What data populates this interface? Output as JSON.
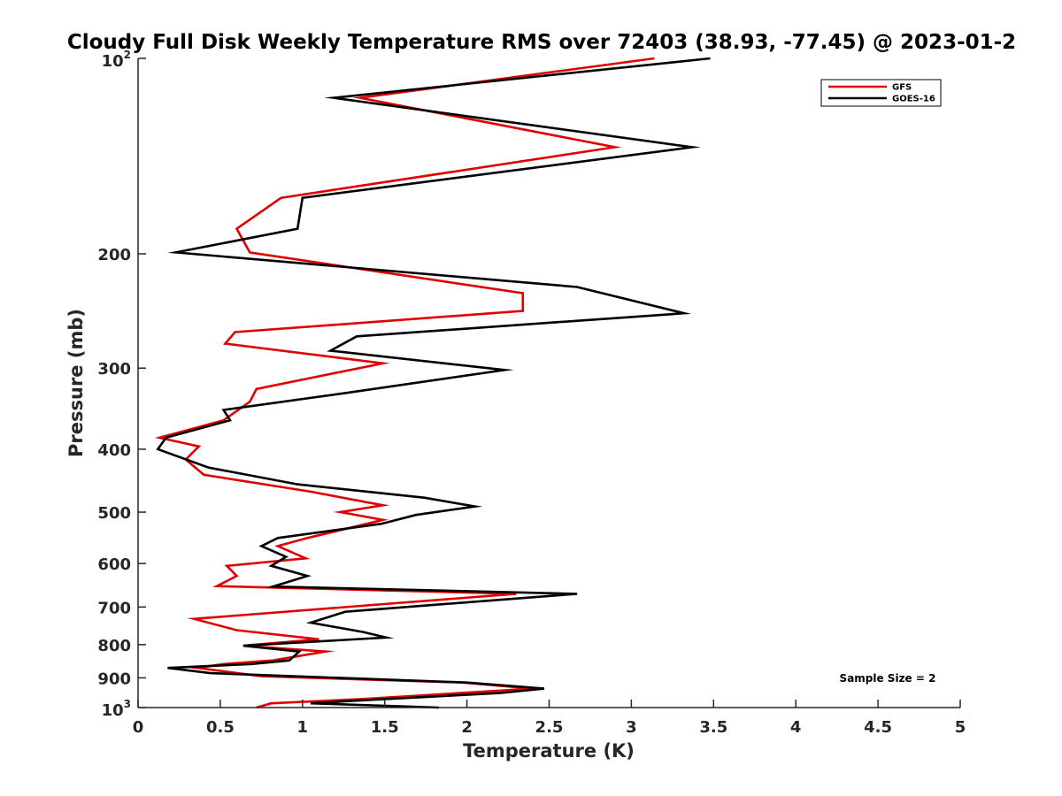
{
  "chart_data": {
    "type": "line",
    "orientation": "vertical-profile",
    "title": "Cloudy Full Disk Weekly Temperature RMS over 72403 (38.93, -77.45) @ 2023-01-2",
    "xlabel": "Temperature (K)",
    "ylabel": "Pressure (mb)",
    "xlim": [
      0,
      5
    ],
    "ylim": [
      100,
      1000
    ],
    "y_scale": "log",
    "y_reversed": true,
    "grid": false,
    "legend_position": "top-right",
    "x_ticks": [
      "0",
      "0.5",
      "1",
      "1.5",
      "2",
      "2.5",
      "3",
      "3.5",
      "4",
      "4.5",
      "5"
    ],
    "y_ticks": [
      {
        "value": 100,
        "base": "10",
        "exp": "2"
      },
      {
        "value": 200,
        "label": "200"
      },
      {
        "value": 300,
        "label": "300"
      },
      {
        "value": 400,
        "label": "400"
      },
      {
        "value": 500,
        "label": "500"
      },
      {
        "value": 600,
        "label": "600"
      },
      {
        "value": 700,
        "label": "700"
      },
      {
        "value": 800,
        "label": "800"
      },
      {
        "value": 900,
        "label": "900"
      },
      {
        "value": 1000,
        "base": "10",
        "exp": "3"
      }
    ],
    "annotation": "Sample Size = 2",
    "series": [
      {
        "name": "GFS",
        "color": "#e00000",
        "points": [
          [
            3.14,
            100
          ],
          [
            1.35,
            115
          ],
          [
            2.9,
            137
          ],
          [
            0.87,
            164
          ],
          [
            0.6,
            183
          ],
          [
            0.68,
            199
          ],
          [
            2.34,
            230
          ],
          [
            2.34,
            245
          ],
          [
            0.59,
            264
          ],
          [
            0.53,
            275
          ],
          [
            1.49,
            295
          ],
          [
            0.72,
            323
          ],
          [
            0.68,
            338
          ],
          [
            0.52,
            361
          ],
          [
            0.13,
            384
          ],
          [
            0.37,
            396
          ],
          [
            0.29,
            415
          ],
          [
            0.4,
            438
          ],
          [
            1.05,
            465
          ],
          [
            1.49,
            488
          ],
          [
            1.23,
            500
          ],
          [
            1.49,
            514
          ],
          [
            1.03,
            548
          ],
          [
            0.85,
            564
          ],
          [
            1.02,
            589
          ],
          [
            0.54,
            605
          ],
          [
            0.6,
            627
          ],
          [
            0.48,
            650
          ],
          [
            2.3,
            668
          ],
          [
            0.34,
            730
          ],
          [
            0.6,
            760
          ],
          [
            1.1,
            785
          ],
          [
            0.64,
            803
          ],
          [
            1.14,
            820
          ],
          [
            0.82,
            846
          ],
          [
            0.52,
            857
          ],
          [
            0.36,
            869
          ],
          [
            0.75,
            895
          ],
          [
            1.97,
            915
          ],
          [
            2.4,
            935
          ],
          [
            1.37,
            970
          ],
          [
            0.81,
            985
          ],
          [
            0.72,
            1000
          ]
        ]
      },
      {
        "name": "GOES-16",
        "color": "#000000",
        "points": [
          [
            3.48,
            100
          ],
          [
            1.19,
            115
          ],
          [
            3.37,
            137
          ],
          [
            1.0,
            164
          ],
          [
            0.97,
            183
          ],
          [
            0.23,
            199
          ],
          [
            2.67,
            225
          ],
          [
            3.32,
            247
          ],
          [
            1.33,
            268
          ],
          [
            1.17,
            282
          ],
          [
            2.23,
            302
          ],
          [
            1.25,
            328
          ],
          [
            0.52,
            348
          ],
          [
            0.56,
            361
          ],
          [
            0.17,
            384
          ],
          [
            0.12,
            400
          ],
          [
            0.43,
            427
          ],
          [
            0.97,
            453
          ],
          [
            1.74,
            475
          ],
          [
            2.05,
            490
          ],
          [
            1.69,
            505
          ],
          [
            1.48,
            521
          ],
          [
            0.85,
            548
          ],
          [
            0.75,
            564
          ],
          [
            0.9,
            586
          ],
          [
            0.81,
            605
          ],
          [
            1.03,
            627
          ],
          [
            0.82,
            651
          ],
          [
            2.67,
            668
          ],
          [
            1.26,
            712
          ],
          [
            1.05,
            740
          ],
          [
            1.37,
            765
          ],
          [
            1.51,
            780
          ],
          [
            0.64,
            803
          ],
          [
            0.98,
            820
          ],
          [
            0.92,
            846
          ],
          [
            0.69,
            857
          ],
          [
            0.18,
            869
          ],
          [
            0.44,
            885
          ],
          [
            2.0,
            915
          ],
          [
            2.47,
            935
          ],
          [
            2.2,
            950
          ],
          [
            1.35,
            975
          ],
          [
            1.05,
            985
          ],
          [
            1.83,
            1000
          ]
        ]
      }
    ]
  }
}
